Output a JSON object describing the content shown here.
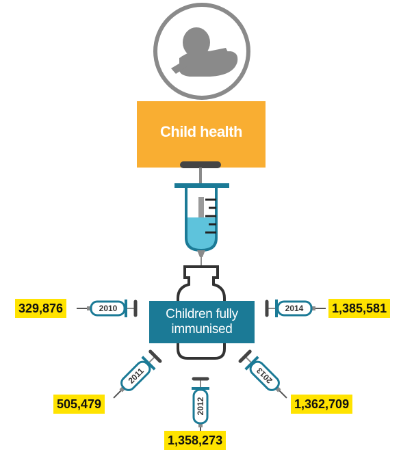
{
  "header": {
    "title": "Child health"
  },
  "center_label": "Children fully immunised",
  "items": [
    {
      "year": "2010",
      "value": "329,876"
    },
    {
      "year": "2011",
      "value": "505,479"
    },
    {
      "year": "2012",
      "value": "1,358,273"
    },
    {
      "year": "2013",
      "value": "1,362,709"
    },
    {
      "year": "2014",
      "value": "1,385,581"
    }
  ]
}
